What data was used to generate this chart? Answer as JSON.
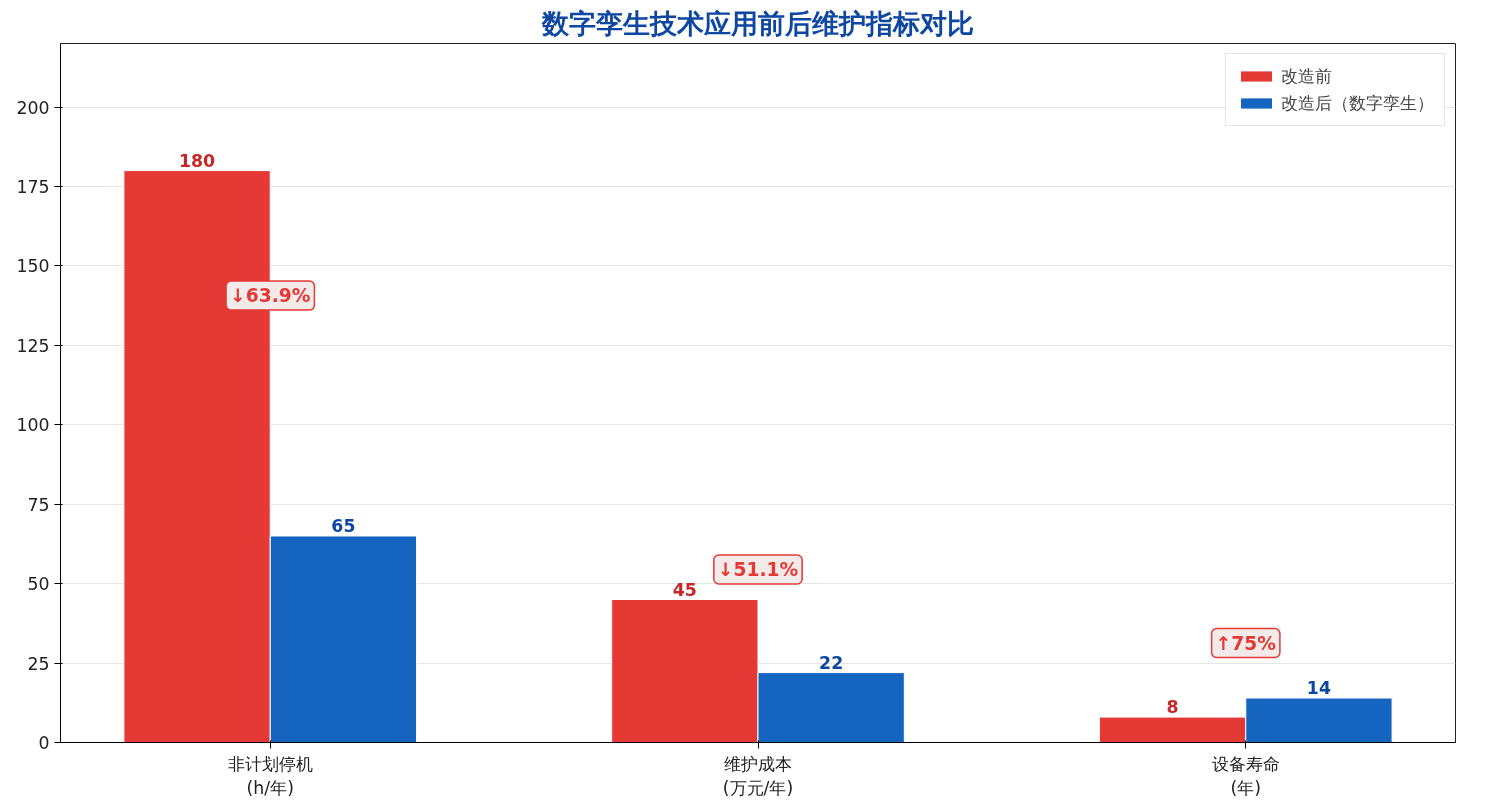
{
  "chart_data": {
    "type": "bar",
    "title": "数字孪生技术应用前后维护指标对比",
    "categories": [
      "非计划停机\n(h/年)",
      "维护成本\n(万元/年)",
      "设备寿命\n(年)"
    ],
    "series": [
      {
        "name": "改造前",
        "color": "#e53935",
        "values": [
          180,
          45,
          8
        ]
      },
      {
        "name": "改造后（数字孪生）",
        "color": "#1565c0",
        "values": [
          65,
          22,
          14
        ]
      }
    ],
    "ylim": [
      0,
      220
    ],
    "yticks": [
      0,
      25,
      50,
      75,
      100,
      125,
      150,
      175,
      200
    ],
    "grid": "y",
    "legend": "top right",
    "data_labels": true,
    "annotations": [
      "↓63.9%",
      "↓51.1%",
      "↑75%"
    ]
  }
}
